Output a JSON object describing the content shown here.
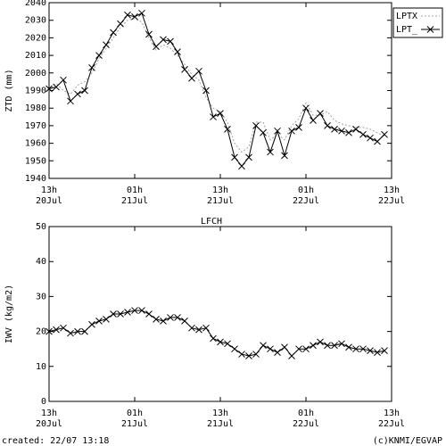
{
  "chart_data": [
    {
      "type": "line",
      "ylabel": "ZTD (mm)",
      "xlim": [
        0,
        48
      ],
      "xticks": [
        {
          "value": 0,
          "label": "13h",
          "date": "20Jul"
        },
        {
          "value": 12,
          "label": "01h",
          "date": "21Jul"
        },
        {
          "value": 24,
          "label": "13h",
          "date": "21Jul"
        },
        {
          "value": 36,
          "label": "01h",
          "date": "22Jul"
        },
        {
          "value": 48,
          "label": "13h",
          "date": "22Jul"
        }
      ],
      "ylim": [
        1940,
        2040
      ],
      "yticks": [
        1940,
        1950,
        1960,
        1970,
        1980,
        1990,
        2000,
        2010,
        2020,
        2030,
        2040
      ],
      "legend": "outside upper right",
      "x": [
        0,
        1,
        2,
        3,
        4,
        5,
        6,
        7,
        8,
        9,
        10,
        11,
        12,
        13,
        14,
        15,
        16,
        17,
        18,
        19,
        20,
        21,
        22,
        23,
        24,
        25,
        26,
        27,
        28,
        29,
        30,
        31,
        32,
        33,
        34,
        35,
        36,
        37,
        38,
        39,
        40,
        41,
        42,
        43,
        44,
        45,
        46,
        47
      ],
      "series": [
        {
          "name": "LPTX",
          "color": "#a0a0a0",
          "style": "dashed",
          "values": [
            1990,
            1994,
            1990,
            1988,
            1993,
            1995,
            2000,
            2008,
            2014,
            2020,
            2026,
            2030,
            2031,
            2029,
            2020,
            2013,
            2016,
            2014,
            2010,
            2005,
            1999,
            1996,
            1986,
            1980,
            1978,
            1972,
            1960,
            1955,
            1958,
            1972,
            1972,
            1962,
            1965,
            1962,
            1970,
            1974,
            1983,
            1976,
            1976,
            1978,
            1973,
            1971,
            1970,
            1969,
            1969,
            1968,
            1966,
            1964
          ]
        },
        {
          "name": "LPT_",
          "color": "#000000",
          "style": "solid",
          "marker": "x",
          "values": [
            1991,
            1992,
            1996,
            1984,
            1988,
            1990,
            2003,
            2010,
            2016,
            2023,
            2028,
            2033,
            2032,
            2034,
            2022,
            2015,
            2019,
            2018,
            2012,
            2002,
            1997,
            2001,
            1990,
            1975,
            1977,
            1968,
            1952,
            1947,
            1952,
            1970,
            1966,
            1955,
            1967,
            1953,
            1967,
            1969,
            1980,
            1973,
            1977,
            1970,
            1968,
            1967,
            1966,
            1968,
            1965,
            1963,
            1961,
            1965
          ]
        }
      ]
    },
    {
      "type": "line",
      "title": "LFCH",
      "ylabel": "IWV (kg/m2)",
      "xlim": [
        0,
        48
      ],
      "xticks": [
        {
          "value": 0,
          "label": "13h",
          "date": "20Jul"
        },
        {
          "value": 12,
          "label": "01h",
          "date": "21Jul"
        },
        {
          "value": 24,
          "label": "13h",
          "date": "21Jul"
        },
        {
          "value": 36,
          "label": "01h",
          "date": "22Jul"
        },
        {
          "value": 48,
          "label": "13h",
          "date": "22Jul"
        }
      ],
      "ylim": [
        0,
        50
      ],
      "yticks": [
        0,
        10,
        20,
        30,
        40,
        50
      ],
      "x": [
        0,
        1,
        2,
        3,
        4,
        5,
        6,
        7,
        8,
        9,
        10,
        11,
        12,
        13,
        14,
        15,
        16,
        17,
        18,
        19,
        20,
        21,
        22,
        23,
        24,
        25,
        26,
        27,
        28,
        29,
        30,
        31,
        32,
        33,
        34,
        35,
        36,
        37,
        38,
        39,
        40,
        41,
        42,
        43,
        44,
        45,
        46,
        47
      ],
      "series": [
        {
          "color": "#000000",
          "style": "solid",
          "marker": "x",
          "values": [
            20,
            20.5,
            21,
            19.5,
            20,
            20,
            22,
            23,
            23.5,
            25,
            25,
            25.5,
            26,
            26,
            25,
            23.5,
            23,
            24,
            24,
            23,
            21,
            20.5,
            21,
            18,
            17,
            16.5,
            15,
            13.5,
            13,
            13.5,
            16,
            15,
            14,
            15.5,
            13,
            15,
            15,
            16,
            17,
            16,
            16,
            16.5,
            15.5,
            15,
            15,
            14.5,
            14,
            14.5
          ]
        }
      ]
    }
  ],
  "footer": {
    "created": "created: 22/07 13:18",
    "credit": "(c)KNMI/EGVAP"
  }
}
